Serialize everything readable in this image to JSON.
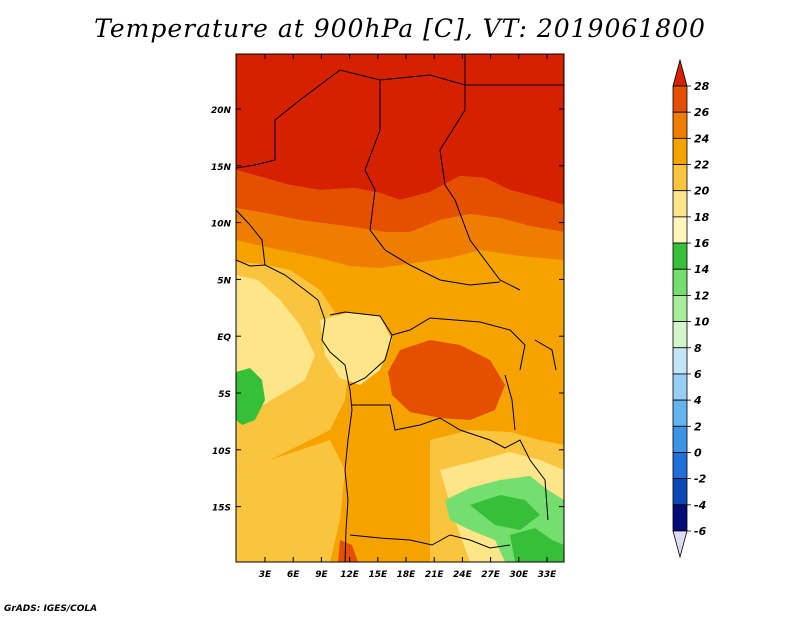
{
  "title": "Temperature at 900hPa [C], VT: 2019061800",
  "credit": "GrADS: IGES/COLA",
  "map": {
    "lat_labels": [
      "20N",
      "15N",
      "10N",
      "5N",
      "EQ",
      "5S",
      "10S",
      "15S"
    ],
    "lon_labels": [
      "3E",
      "6E",
      "9E",
      "12E",
      "15E",
      "18E",
      "21E",
      "24E",
      "27E",
      "30E",
      "33E"
    ]
  },
  "colorbar": {
    "labels": [
      "28",
      "26",
      "24",
      "22",
      "20",
      "18",
      "16",
      "14",
      "12",
      "10",
      "8",
      "6",
      "4",
      "2",
      "0",
      "-2",
      "-4",
      "-6"
    ],
    "colors": [
      "#d62100",
      "#e54f00",
      "#ef7d00",
      "#f6a300",
      "#fbc43e",
      "#fde58a",
      "#fdf7bd",
      "#36bf38",
      "#74df6e",
      "#a8ec9a",
      "#d4f6cb",
      "#c4e6fb",
      "#95cff6",
      "#64b4ef",
      "#3c94e6",
      "#1e6fd8",
      "#0d48b8",
      "#050c78"
    ]
  }
}
